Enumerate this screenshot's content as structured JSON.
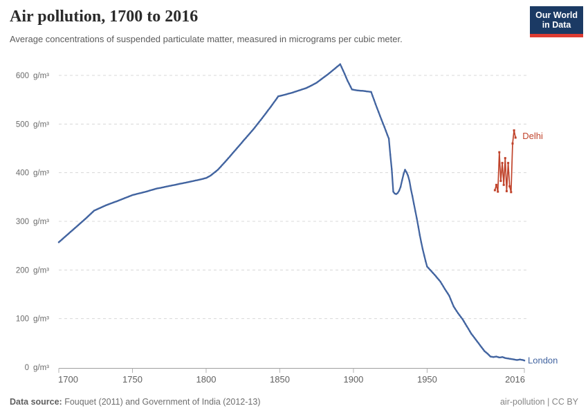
{
  "header": {
    "title": "Air pollution, 1700 to 2016",
    "subtitle": "Average concentrations of suspended particulate matter, measured in micrograms per cubic meter.",
    "logo": {
      "line1": "Our World",
      "line2": "in Data",
      "bg_color": "#1B3A64",
      "bar_color": "#DE3C32"
    }
  },
  "footer": {
    "source_label": "Data source:",
    "source_text": " Fouquet (2011) and Government of India (2012-13)",
    "right_text": "air-pollution | CC BY"
  },
  "chart_data": {
    "type": "line",
    "title": "Air pollution, 1700 to 2016",
    "xlabel": "",
    "ylabel": "g/m³",
    "unit": "g/m³",
    "xlim": [
      1700,
      2016
    ],
    "ylim": [
      0,
      600
    ],
    "x_ticks": [
      1700,
      1750,
      1800,
      1850,
      1900,
      1950,
      2016
    ],
    "y_ticks": [
      0,
      100,
      200,
      300,
      400,
      500,
      600
    ],
    "grid": "horizontal-dashed",
    "legend": "end-of-line-labels",
    "colors": {
      "grid": "#d8d8d8",
      "axis": "#9e9e9e",
      "tick": "#b0b0b0",
      "x_label": "#5f5f5f",
      "y_label": "#6b6b6b"
    },
    "series": [
      {
        "name": "London",
        "color": "#4264A0",
        "points": [
          [
            1700,
            257
          ],
          [
            1706,
            273
          ],
          [
            1712,
            289
          ],
          [
            1718,
            305
          ],
          [
            1724,
            322
          ],
          [
            1732,
            333
          ],
          [
            1740,
            342
          ],
          [
            1750,
            354
          ],
          [
            1758,
            360
          ],
          [
            1766,
            367
          ],
          [
            1774,
            372
          ],
          [
            1782,
            377
          ],
          [
            1790,
            382
          ],
          [
            1796,
            386
          ],
          [
            1800,
            389
          ],
          [
            1803,
            394
          ],
          [
            1808,
            406
          ],
          [
            1814,
            426
          ],
          [
            1820,
            447
          ],
          [
            1826,
            468
          ],
          [
            1832,
            489
          ],
          [
            1838,
            512
          ],
          [
            1844,
            536
          ],
          [
            1849,
            557
          ],
          [
            1853,
            560
          ],
          [
            1858,
            564
          ],
          [
            1863,
            569
          ],
          [
            1868,
            574
          ],
          [
            1872,
            580
          ],
          [
            1875,
            585
          ],
          [
            1879,
            594
          ],
          [
            1883,
            603
          ],
          [
            1887,
            613
          ],
          [
            1891,
            623
          ],
          [
            1893,
            610
          ],
          [
            1896,
            589
          ],
          [
            1899,
            571
          ],
          [
            1903,
            569
          ],
          [
            1907,
            568
          ],
          [
            1912,
            566
          ],
          [
            1915,
            541
          ],
          [
            1918,
            517
          ],
          [
            1921,
            494
          ],
          [
            1924,
            470
          ],
          [
            1925,
            437
          ],
          [
            1926,
            407
          ],
          [
            1927,
            361
          ],
          [
            1928,
            357
          ],
          [
            1929,
            356
          ],
          [
            1930,
            358
          ],
          [
            1931,
            363
          ],
          [
            1932,
            371
          ],
          [
            1933,
            384
          ],
          [
            1934,
            397
          ],
          [
            1935,
            406
          ],
          [
            1936,
            401
          ],
          [
            1937,
            394
          ],
          [
            1938,
            383
          ],
          [
            1939,
            366
          ],
          [
            1940,
            352
          ],
          [
            1941,
            336
          ],
          [
            1942,
            321
          ],
          [
            1943,
            306
          ],
          [
            1944,
            289
          ],
          [
            1945,
            272
          ],
          [
            1946,
            257
          ],
          [
            1947,
            243
          ],
          [
            1948,
            230
          ],
          [
            1949,
            218
          ],
          [
            1950,
            207
          ],
          [
            1953,
            197
          ],
          [
            1956,
            187
          ],
          [
            1959,
            176
          ],
          [
            1962,
            161
          ],
          [
            1965,
            147
          ],
          [
            1968,
            125
          ],
          [
            1971,
            111
          ],
          [
            1974,
            99
          ],
          [
            1977,
            84
          ],
          [
            1980,
            69
          ],
          [
            1983,
            57
          ],
          [
            1986,
            45
          ],
          [
            1989,
            33
          ],
          [
            1991,
            28
          ],
          [
            1993,
            22
          ],
          [
            1995,
            21
          ],
          [
            1997,
            22
          ],
          [
            1999,
            20
          ],
          [
            2001,
            21
          ],
          [
            2003,
            19
          ],
          [
            2005,
            18
          ],
          [
            2007,
            17
          ],
          [
            2009,
            16
          ],
          [
            2011,
            15
          ],
          [
            2013,
            16
          ],
          [
            2015,
            15
          ],
          [
            2016,
            14
          ]
        ]
      },
      {
        "name": "Delhi",
        "color": "#C0432B",
        "points": [
          [
            1996,
            364
          ],
          [
            1997,
            375
          ],
          [
            1998,
            361
          ],
          [
            1999,
            442
          ],
          [
            2000,
            383
          ],
          [
            2001,
            420
          ],
          [
            2002,
            375
          ],
          [
            2003,
            430
          ],
          [
            2004,
            362
          ],
          [
            2005,
            420
          ],
          [
            2006,
            372
          ],
          [
            2007,
            360
          ],
          [
            2008,
            460
          ],
          [
            2009,
            487
          ],
          [
            2010,
            472
          ]
        ]
      }
    ]
  }
}
